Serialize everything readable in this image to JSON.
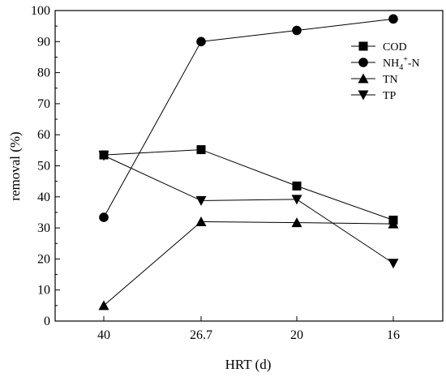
{
  "chart_data": {
    "type": "line",
    "xlabel": "HRT (d)",
    "ylabel": "removal (%)",
    "categories": [
      "40",
      "26.7",
      "20",
      "16"
    ],
    "ylim": [
      0,
      100
    ],
    "yticks": [
      0,
      10,
      20,
      30,
      40,
      50,
      60,
      70,
      80,
      90,
      100
    ],
    "grid": false,
    "legend_position": "top-right",
    "series": [
      {
        "name": "COD",
        "marker": "square",
        "values": [
          53.5,
          55.2,
          43.5,
          32.5
        ]
      },
      {
        "name": "NH4+-N",
        "name_parts": {
          "base": "NH",
          "sub": "4",
          "sup": "+",
          "tail": "-N"
        },
        "marker": "circle",
        "values": [
          33.4,
          90.0,
          93.6,
          97.3
        ]
      },
      {
        "name": "TN",
        "marker": "triangle-up",
        "values": [
          5.0,
          32.0,
          31.7,
          31.3
        ]
      },
      {
        "name": "TP",
        "marker": "triangle-down",
        "values": [
          53.3,
          38.8,
          39.2,
          18.6
        ]
      }
    ]
  }
}
